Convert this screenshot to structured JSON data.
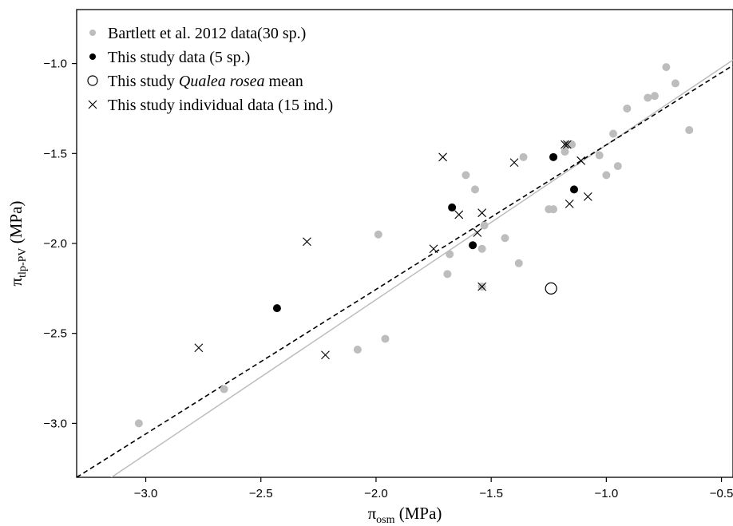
{
  "chart_data": {
    "type": "scatter",
    "title": "",
    "xlabel": {
      "symbol": "π",
      "subscript": "osm",
      "unit": " (MPa)"
    },
    "ylabel": {
      "symbol": "π",
      "subscript": "tlp-PV",
      "unit": " (MPa)"
    },
    "xlim": [
      -3.3,
      -0.45
    ],
    "ylim": [
      -3.3,
      -0.7
    ],
    "xticks": [
      -3.0,
      -2.5,
      -2.0,
      -1.5,
      -1.0,
      -0.5
    ],
    "yticks": [
      -3.0,
      -2.5,
      -2.0,
      -1.5,
      -1.0
    ],
    "xtick_labels": [
      "−3.0",
      "−2.5",
      "−2.0",
      "−1.5",
      "−1.0",
      "−0.5"
    ],
    "ytick_labels": [
      "−3.0",
      "−2.5",
      "−2.0",
      "−1.5",
      "−1.0"
    ],
    "grid": false,
    "legend_position": "top-left",
    "series": [
      {
        "name": "Bartlett et al. 2012 data(30 sp.)",
        "marker": "filled-circle",
        "color": "#bdbdbd",
        "points": [
          [
            -3.03,
            -3.0
          ],
          [
            -2.66,
            -2.81
          ],
          [
            -2.08,
            -2.59
          ],
          [
            -1.96,
            -2.53
          ],
          [
            -1.99,
            -1.95
          ],
          [
            -1.69,
            -2.17
          ],
          [
            -1.68,
            -2.06
          ],
          [
            -1.61,
            -1.62
          ],
          [
            -1.57,
            -1.7
          ],
          [
            -1.54,
            -2.03
          ],
          [
            -1.53,
            -1.9
          ],
          [
            -1.54,
            -2.24
          ],
          [
            -1.44,
            -1.97
          ],
          [
            -1.38,
            -2.11
          ],
          [
            -1.36,
            -1.52
          ],
          [
            -1.25,
            -1.81
          ],
          [
            -1.23,
            -1.81
          ],
          [
            -1.18,
            -1.49
          ],
          [
            -1.15,
            -1.45
          ],
          [
            -1.03,
            -1.51
          ],
          [
            -1.0,
            -1.62
          ],
          [
            -0.97,
            -1.39
          ],
          [
            -0.95,
            -1.57
          ],
          [
            -0.91,
            -1.25
          ],
          [
            -0.82,
            -1.19
          ],
          [
            -0.79,
            -1.18
          ],
          [
            -0.74,
            -1.02
          ],
          [
            -0.7,
            -1.11
          ],
          [
            -0.64,
            -1.37
          ],
          [
            -1.17,
            -1.45
          ]
        ]
      },
      {
        "name": "This study data (5 sp.)",
        "marker": "filled-circle",
        "color": "#000000",
        "points": [
          [
            -2.43,
            -2.36
          ],
          [
            -1.67,
            -1.8
          ],
          [
            -1.58,
            -2.01
          ],
          [
            -1.23,
            -1.52
          ],
          [
            -1.14,
            -1.7
          ]
        ]
      },
      {
        "name_parts": [
          "This study ",
          "Qualea rosea",
          " mean"
        ],
        "marker": "open-circle",
        "color": "#000000",
        "points": [
          [
            -1.24,
            -2.25
          ]
        ]
      },
      {
        "name": "This study individual data (15 ind.)",
        "marker": "cross",
        "color": "#000000",
        "points": [
          [
            -2.77,
            -2.58
          ],
          [
            -2.3,
            -1.99
          ],
          [
            -2.22,
            -2.62
          ],
          [
            -1.75,
            -2.03
          ],
          [
            -1.71,
            -1.52
          ],
          [
            -1.64,
            -1.84
          ],
          [
            -1.56,
            -1.94
          ],
          [
            -1.54,
            -1.83
          ],
          [
            -1.54,
            -2.24
          ],
          [
            -1.4,
            -1.55
          ],
          [
            -1.18,
            -1.45
          ],
          [
            -1.16,
            -1.78
          ],
          [
            -1.11,
            -1.54
          ],
          [
            -1.08,
            -1.74
          ],
          [
            -1.17,
            -1.45
          ]
        ]
      }
    ],
    "fit_lines": [
      {
        "style": "solid",
        "color": "#bdbdbd",
        "from": [
          -3.3,
          -3.43
        ],
        "to": [
          -0.45,
          -0.98
        ]
      },
      {
        "style": "dashed",
        "color": "#000000",
        "from": [
          -3.3,
          -3.3
        ],
        "to": [
          -0.45,
          -1.01
        ]
      }
    ]
  }
}
